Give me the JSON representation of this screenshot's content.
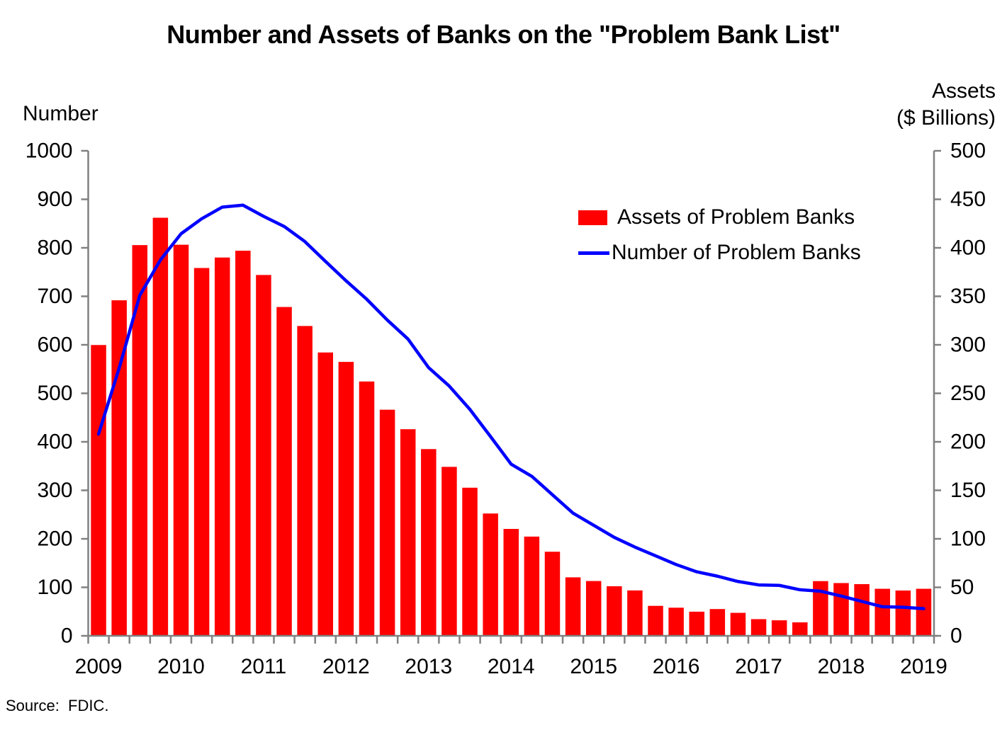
{
  "title": "Number and Assets of Banks on the \"Problem Bank List\"",
  "left_axis_title": "Number",
  "right_axis_title_line1": "Assets",
  "right_axis_title_line2": "($ Billions)",
  "source": "Source:  FDIC.",
  "legend": {
    "assets_label": "Assets of Problem Banks",
    "number_label": "Number of Problem Banks"
  },
  "colors": {
    "bar": "#FF0000",
    "line": "#0000FF",
    "axis": "#808080",
    "text": "#000000"
  },
  "chart_data": {
    "type": "combo",
    "x": [
      "2009Q2",
      "2009Q3",
      "2009Q4",
      "2010Q1",
      "2010Q2",
      "2010Q3",
      "2010Q4",
      "2011Q1",
      "2011Q2",
      "2011Q3",
      "2011Q4",
      "2012Q1",
      "2012Q2",
      "2012Q3",
      "2012Q4",
      "2013Q1",
      "2013Q2",
      "2013Q3",
      "2013Q4",
      "2014Q1",
      "2014Q2",
      "2014Q3",
      "2014Q4",
      "2015Q1",
      "2015Q2",
      "2015Q3",
      "2015Q4",
      "2016Q1",
      "2016Q2",
      "2016Q3",
      "2016Q4",
      "2017Q1",
      "2017Q2",
      "2017Q3",
      "2017Q4",
      "2018Q1",
      "2018Q2",
      "2018Q3",
      "2018Q4",
      "2019Q1",
      "2019Q2"
    ],
    "x_year_labels": [
      "2009",
      "2010",
      "2011",
      "2012",
      "2013",
      "2014",
      "2015",
      "2016",
      "2017",
      "2018",
      "2019"
    ],
    "left_axis": {
      "title": "Number",
      "min": 0,
      "max": 1000,
      "step": 100,
      "tick_labels_top_to_bottom": [
        "1000",
        "900",
        "800",
        "700",
        "600",
        "500",
        "400",
        "300",
        "200",
        "100",
        "0"
      ]
    },
    "right_axis": {
      "title": "Assets ($ Billions)",
      "min": 0,
      "max": 500,
      "step": 50,
      "tick_labels_top_to_bottom": [
        "500",
        "450",
        "400",
        "350",
        "300",
        "250",
        "200",
        "150",
        "100",
        "50",
        "0"
      ]
    },
    "grid": false,
    "legend_position": "upper-right-inside",
    "series": [
      {
        "name": "Assets of Problem Banks",
        "type": "bar",
        "axis": "right",
        "color": "#FF0000",
        "values": [
          299.8,
          345.9,
          402.8,
          431.0,
          403.2,
          379.2,
          390.0,
          397.0,
          372.0,
          339.0,
          319.4,
          292.1,
          282.4,
          262.2,
          233.1,
          213.0,
          192.5,
          174.2,
          152.7,
          126.1,
          110.2,
          102.3,
          86.7,
          60.3,
          56.5,
          51.1,
          46.8,
          30.9,
          29.0,
          24.9,
          27.6,
          23.7,
          17.2,
          16.0,
          13.9,
          56.4,
          54.4,
          53.3,
          48.5,
          46.7,
          48.5
        ]
      },
      {
        "name": "Number of Problem Banks",
        "type": "line",
        "axis": "left",
        "color": "#0000FF",
        "values": [
          416,
          552,
          702,
          775,
          829,
          860,
          884,
          888,
          865,
          844,
          813,
          772,
          732,
          694,
          651,
          612,
          553,
          515,
          467,
          411,
          354,
          329,
          291,
          253,
          228,
          203,
          183,
          165,
          147,
          132,
          123,
          112,
          105,
          104,
          95,
          92,
          82,
          71,
          60,
          59,
          56
        ]
      }
    ]
  }
}
